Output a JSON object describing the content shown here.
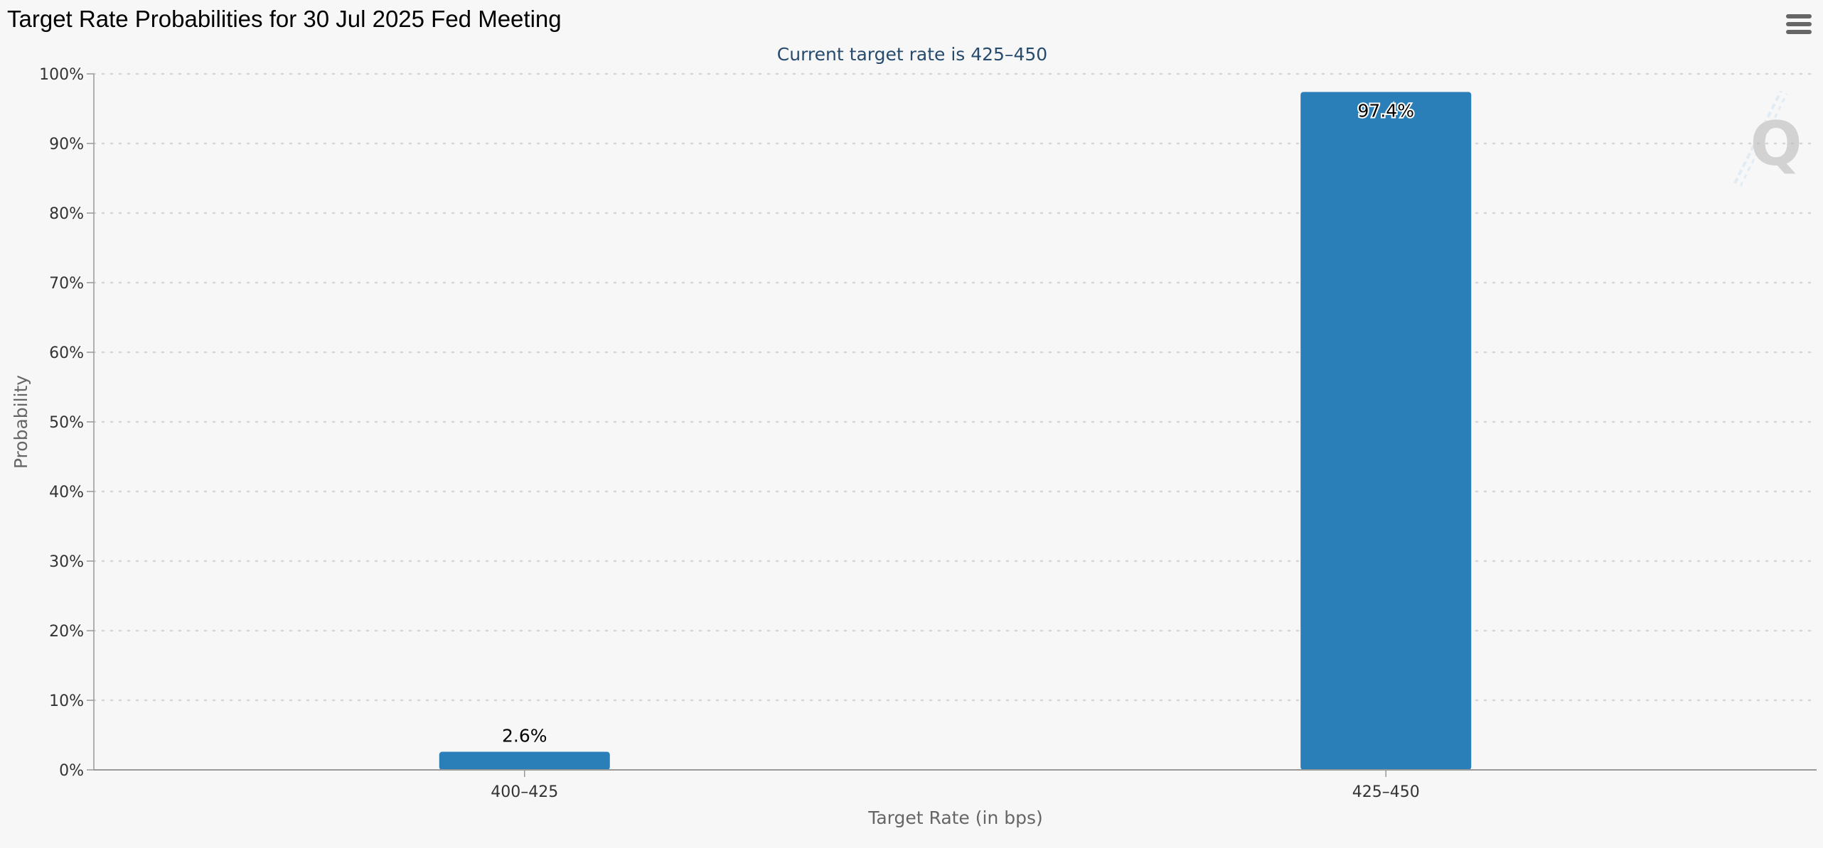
{
  "header": {
    "title": "Target Rate Probabilities for 30 Jul 2025 Fed Meeting",
    "menu_icon": "hamburger-menu-icon"
  },
  "colors": {
    "bar": "#2a7fb8",
    "grid": "#d6d6d6",
    "subtitle": "#274b6d"
  },
  "chart_data": {
    "type": "bar",
    "title": "Target Rate Probabilities for 30 Jul 2025 Fed Meeting",
    "subtitle": "Current target rate is 425–450",
    "xlabel": "Target Rate (in bps)",
    "ylabel": "Probability",
    "categories": [
      "400–425",
      "425–450"
    ],
    "values": [
      2.6,
      97.4
    ],
    "data_labels": [
      "2.6%",
      "97.4%"
    ],
    "ylim": [
      0,
      100
    ],
    "yticks": [
      "0%",
      "10%",
      "20%",
      "30%",
      "40%",
      "50%",
      "60%",
      "70%",
      "80%",
      "90%",
      "100%"
    ],
    "grid": true,
    "legend": "none"
  }
}
